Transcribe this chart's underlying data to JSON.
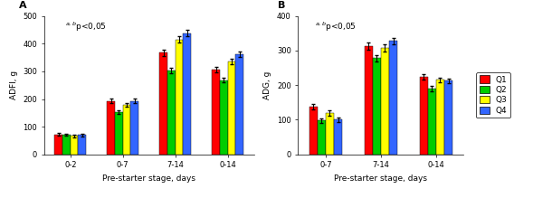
{
  "panel_A": {
    "title": "A",
    "ylabel": "ADFI, g",
    "xlabel": "Pre-starter stage, days",
    "ylim": [
      0,
      500
    ],
    "yticks": [
      0,
      100,
      200,
      300,
      400,
      500
    ],
    "annotation": "$^{a,b}$p<0,05",
    "categories": [
      "0-2",
      "0-7",
      "7-14",
      "0-14"
    ],
    "values": {
      "Q1": [
        72,
        193,
        367,
        305
      ],
      "Q2": [
        72,
        152,
        303,
        268
      ],
      "Q3": [
        67,
        178,
        415,
        335
      ],
      "Q4": [
        70,
        193,
        438,
        362
      ]
    },
    "errors": {
      "Q1": [
        5,
        8,
        12,
        10
      ],
      "Q2": [
        4,
        7,
        10,
        9
      ],
      "Q3": [
        4,
        7,
        12,
        10
      ],
      "Q4": [
        4,
        8,
        10,
        9
      ]
    }
  },
  "panel_B": {
    "title": "B",
    "ylabel": "ADG, g",
    "xlabel": "Pre-starter stage, days",
    "ylim": [
      0,
      400
    ],
    "yticks": [
      0,
      100,
      200,
      300,
      400
    ],
    "annotation": "$^{a,b}$p<0,05",
    "categories": [
      "0-7",
      "7-14",
      "0-14"
    ],
    "values": {
      "Q1": [
        138,
        313,
        225
      ],
      "Q2": [
        98,
        278,
        190
      ],
      "Q3": [
        120,
        308,
        215
      ],
      "Q4": [
        100,
        328,
        213
      ]
    },
    "errors": {
      "Q1": [
        8,
        10,
        8
      ],
      "Q2": [
        7,
        9,
        7
      ],
      "Q3": [
        7,
        10,
        7
      ],
      "Q4": [
        7,
        9,
        7
      ]
    }
  },
  "colors": {
    "Q1": "#FF0000",
    "Q2": "#00CC00",
    "Q3": "#FFFF00",
    "Q4": "#3366FF"
  },
  "bar_width": 0.15,
  "legend_labels": [
    "Q1",
    "Q2",
    "Q3",
    "Q4"
  ]
}
